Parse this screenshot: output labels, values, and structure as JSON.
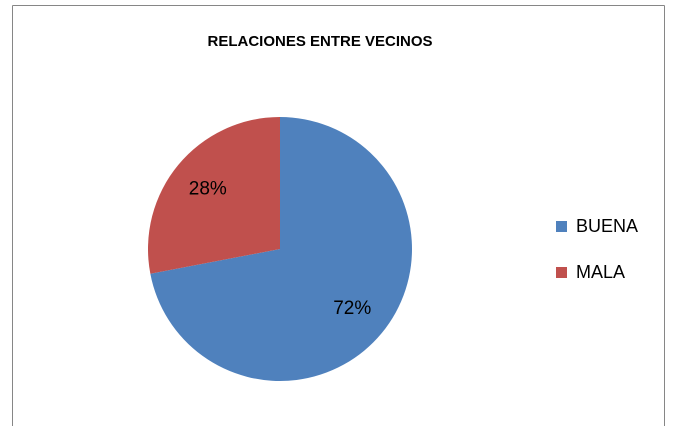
{
  "chart_data": {
    "type": "pie",
    "title": "RELACIONES ENTRE VECINOS",
    "categories": [
      "BUENA",
      "MALA"
    ],
    "values": [
      72,
      28
    ],
    "value_labels": [
      "72%",
      "28%"
    ],
    "colors": [
      "#4f81bd",
      "#c0504d"
    ],
    "legend": "right"
  }
}
